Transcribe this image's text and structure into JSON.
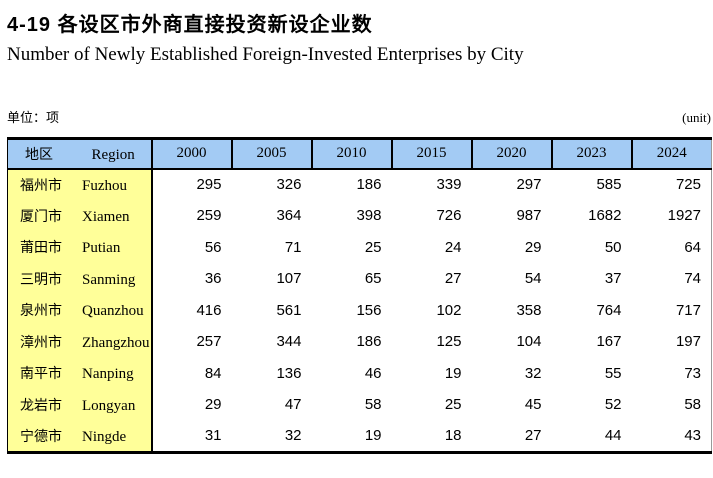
{
  "page": {
    "title_zh": "4-19  各设区市外商直接投资新设企业数",
    "title_en": "Number of Newly Established Foreign-Invested Enterprises by City",
    "unit_left": "单位：项",
    "unit_right": "(unit)"
  },
  "table": {
    "region_header_zh": "地区",
    "region_header_en": "Region",
    "year_columns": [
      "2000",
      "2005",
      "2010",
      "2015",
      "2020",
      "2023",
      "2024"
    ],
    "rows": [
      {
        "zh": "福州市",
        "en": "Fuzhou",
        "values": [
          "295",
          "326",
          "186",
          "339",
          "297",
          "585",
          "725"
        ]
      },
      {
        "zh": "厦门市",
        "en": "Xiamen",
        "values": [
          "259",
          "364",
          "398",
          "726",
          "987",
          "1682",
          "1927"
        ]
      },
      {
        "zh": "莆田市",
        "en": "Putian",
        "values": [
          "56",
          "71",
          "25",
          "24",
          "29",
          "50",
          "64"
        ]
      },
      {
        "zh": "三明市",
        "en": "Sanming",
        "values": [
          "36",
          "107",
          "65",
          "27",
          "54",
          "37",
          "74"
        ]
      },
      {
        "zh": "泉州市",
        "en": "Quanzhou",
        "values": [
          "416",
          "561",
          "156",
          "102",
          "358",
          "764",
          "717"
        ]
      },
      {
        "zh": "漳州市",
        "en": "Zhangzhou",
        "values": [
          "257",
          "344",
          "186",
          "125",
          "104",
          "167",
          "197"
        ]
      },
      {
        "zh": "南平市",
        "en": "Nanping",
        "values": [
          "84",
          "136",
          "46",
          "19",
          "32",
          "55",
          "73"
        ]
      },
      {
        "zh": "龙岩市",
        "en": "Longyan",
        "values": [
          "29",
          "47",
          "58",
          "25",
          "45",
          "52",
          "58"
        ]
      },
      {
        "zh": "宁德市",
        "en": "Ningde",
        "values": [
          "31",
          "32",
          "19",
          "18",
          "27",
          "44",
          "43"
        ]
      }
    ]
  },
  "colors": {
    "header_bg": "#a3cbf4",
    "region_bg": "#ffff99",
    "border": "#000000"
  }
}
